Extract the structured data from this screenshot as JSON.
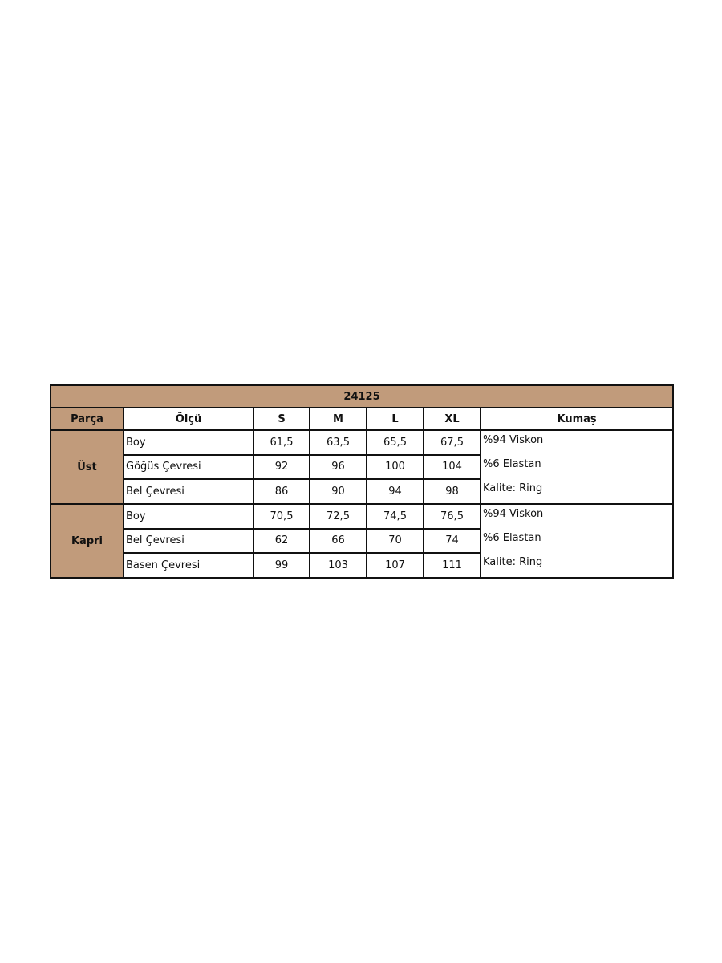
{
  "title": "24125",
  "headers": [
    "Parça",
    "Ölçü",
    "S",
    "M",
    "L",
    "XL",
    "Kumaş"
  ],
  "groups": [
    {
      "part": "Üst",
      "rows": [
        {
          "measure": "Boy",
          "values": [
            "61,5",
            "63,5",
            "65,5",
            "67,5"
          ]
        },
        {
          "measure": "Göğüs Çevresi",
          "values": [
            "92",
            "96",
            "100",
            "104"
          ]
        },
        {
          "measure": "Bel Çevresi",
          "values": [
            "86",
            "90",
            "94",
            "98"
          ]
        }
      ],
      "fabric": [
        "%94 Viskon",
        "%6 Elastan",
        "Kalite: Ring"
      ]
    },
    {
      "part": "Kapri",
      "rows": [
        {
          "measure": "Boy",
          "values": [
            "70,5",
            "72,5",
            "74,5",
            "76,5"
          ]
        },
        {
          "measure": "Bel Çevresi",
          "values": [
            "62",
            "66",
            "70",
            "74"
          ]
        },
        {
          "measure": "Basen Çevresi",
          "values": [
            "99",
            "103",
            "107",
            "111"
          ]
        }
      ],
      "fabric": [
        "%94 Viskon",
        "%6 Elastan",
        "Kalite: Ring"
      ]
    }
  ],
  "colors": {
    "header_fill": "#c19b7b",
    "border": "#111111"
  }
}
